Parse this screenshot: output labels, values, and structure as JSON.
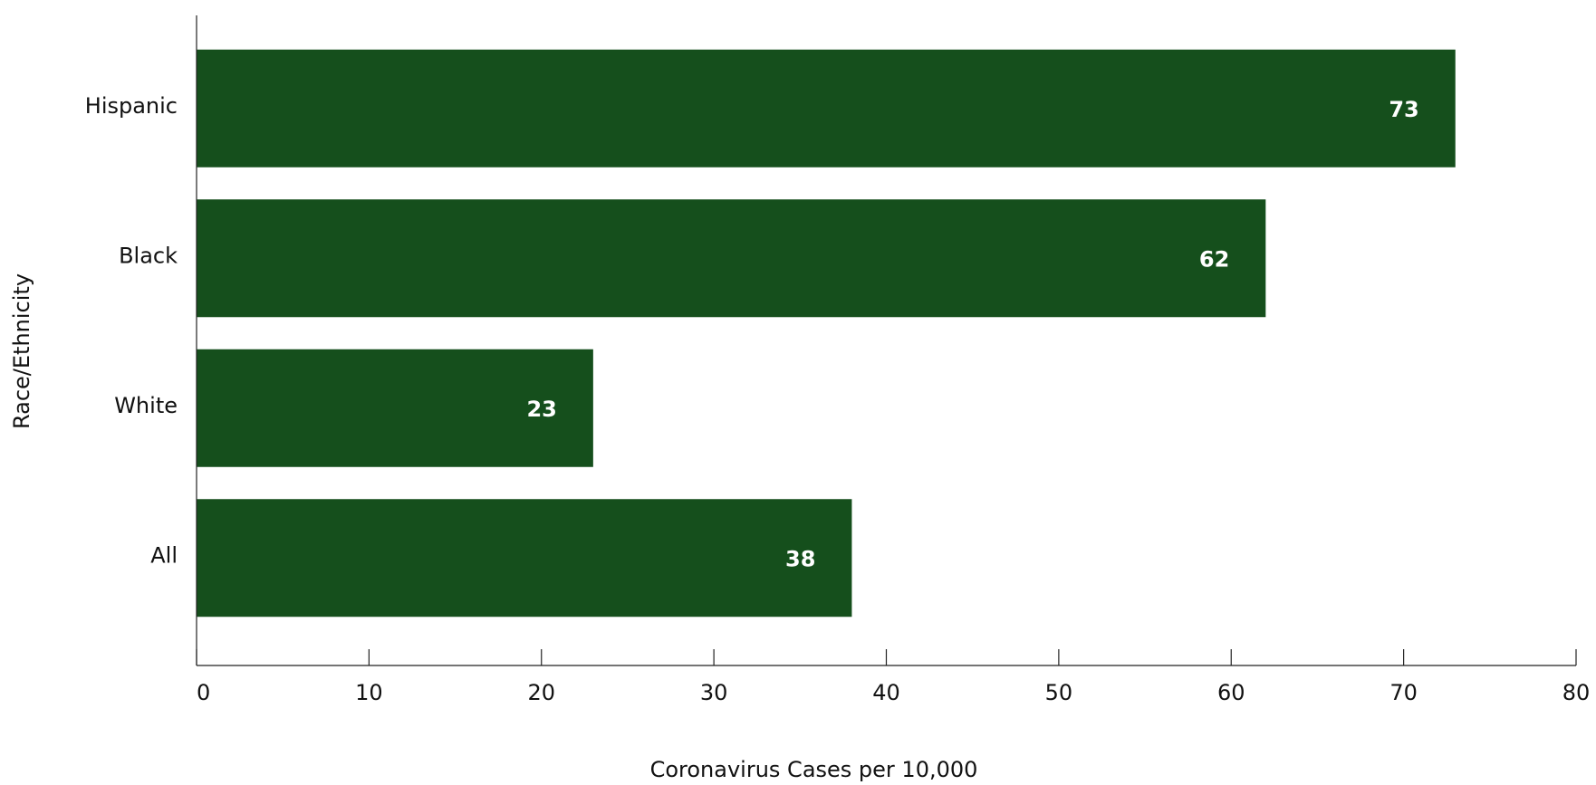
{
  "chart_data": {
    "type": "bar",
    "orientation": "horizontal",
    "categories": [
      "Hispanic",
      "Black",
      "White",
      "All"
    ],
    "values": [
      73,
      62,
      23,
      38
    ],
    "data_labels": [
      "73",
      "62",
      "23",
      "38"
    ],
    "title": "",
    "xlabel": "Coronavirus Cases per 10,000",
    "ylabel": "Race/Ethnicity",
    "xlim": [
      0,
      80
    ],
    "xticks": [
      0,
      10,
      20,
      30,
      40,
      50,
      60,
      70,
      80
    ],
    "xtick_labels": [
      "0",
      "10",
      "20",
      "30",
      "40",
      "50",
      "60",
      "70",
      "80"
    ],
    "grid": false,
    "legend": "none",
    "bar_color": "#154f1c",
    "value_label_color": "#ffffff"
  }
}
